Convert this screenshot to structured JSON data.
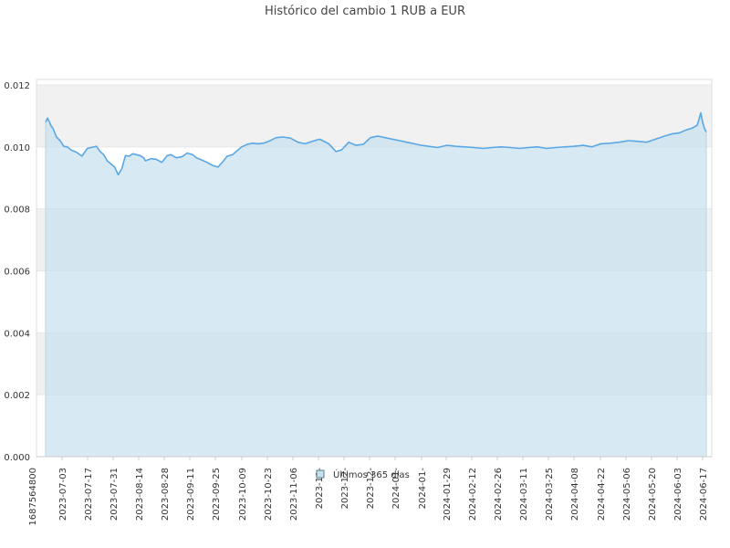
{
  "chart_data": {
    "type": "area",
    "title": "Histórico del cambio 1 RUB a EUR",
    "xlabel": "",
    "ylabel": "",
    "ylim": [
      0,
      0.012
    ],
    "y_ticks": [
      "0.000",
      "0.002",
      "0.004",
      "0.006",
      "0.008",
      "0.010",
      "0.012"
    ],
    "x_tick_labels": [
      "1687564800",
      "2023-07-03",
      "2023-07-17",
      "2023-07-31",
      "2023-08-14",
      "2023-08-28",
      "2023-09-11",
      "2023-09-25",
      "2023-10-09",
      "2023-10-23",
      "2023-11-06",
      "2023-11-",
      "2023-12-",
      "2023-12-",
      "2024-01-",
      "2024-01-",
      "2024-01-29",
      "2024-02-12",
      "2024-02-26",
      "2024-03-11",
      "2024-03-25",
      "2024-04-08",
      "2024-04-22",
      "2024-05-06",
      "2024-05-20",
      "2024-06-03",
      "2024-06-17"
    ],
    "grid": true,
    "legend_position": "bottom-center",
    "colors": {
      "line": "#5aa7e6",
      "fill": "#c6e0ec",
      "band_alt": "#f1f1f1"
    },
    "series": [
      {
        "name": "Últimos 365 días",
        "x": [
          "2023-06-24",
          "2023-06-25",
          "2023-06-26",
          "2023-06-27",
          "2023-06-28",
          "2023-06-30",
          "2023-07-02",
          "2023-07-04",
          "2023-07-06",
          "2023-07-08",
          "2023-07-11",
          "2023-07-14",
          "2023-07-17",
          "2023-07-19",
          "2023-07-22",
          "2023-07-24",
          "2023-07-26",
          "2023-07-28",
          "2023-07-30",
          "2023-08-01",
          "2023-08-03",
          "2023-08-05",
          "2023-08-07",
          "2023-08-09",
          "2023-08-11",
          "2023-08-13",
          "2023-08-15",
          "2023-08-17",
          "2023-08-18",
          "2023-08-21",
          "2023-08-24",
          "2023-08-27",
          "2023-08-30",
          "2023-09-01",
          "2023-09-04",
          "2023-09-07",
          "2023-09-10",
          "2023-09-13",
          "2023-09-15",
          "2023-09-18",
          "2023-09-21",
          "2023-09-24",
          "2023-09-27",
          "2023-09-30",
          "2023-10-02",
          "2023-10-05",
          "2023-10-08",
          "2023-10-10",
          "2023-10-13",
          "2023-10-16",
          "2023-10-19",
          "2023-10-22",
          "2023-10-25",
          "2023-10-29",
          "2023-11-02",
          "2023-11-06",
          "2023-11-10",
          "2023-11-14",
          "2023-11-18",
          "2023-11-22",
          "2023-11-27",
          "2023-12-01",
          "2023-12-04",
          "2023-12-08",
          "2023-12-12",
          "2023-12-16",
          "2023-12-20",
          "2023-12-24",
          "2023-12-28",
          "2024-01-01",
          "2024-01-05",
          "2024-01-09",
          "2024-01-13",
          "2024-01-17",
          "2024-01-21",
          "2024-01-26",
          "2024-01-31",
          "2024-02-05",
          "2024-02-10",
          "2024-02-15",
          "2024-02-20",
          "2024-02-25",
          "2024-03-01",
          "2024-03-06",
          "2024-03-11",
          "2024-03-16",
          "2024-03-21",
          "2024-03-26",
          "2024-03-31",
          "2024-04-05",
          "2024-04-10",
          "2024-04-15",
          "2024-04-20",
          "2024-04-25",
          "2024-04-30",
          "2024-05-05",
          "2024-05-10",
          "2024-05-15",
          "2024-05-20",
          "2024-05-25",
          "2024-05-30",
          "2024-06-03",
          "2024-06-07",
          "2024-06-11",
          "2024-06-14",
          "2024-06-17",
          "2024-06-19",
          "2024-06-20",
          "2024-06-21",
          "2024-06-22"
        ],
        "y": [
          0.0108,
          0.01093,
          0.01082,
          0.01068,
          0.0106,
          0.01032,
          0.0102,
          0.01002,
          0.01,
          0.0099,
          0.00983,
          0.0097,
          0.00995,
          0.00998,
          0.01002,
          0.00985,
          0.00975,
          0.00955,
          0.00945,
          0.00935,
          0.0091,
          0.0093,
          0.00972,
          0.0097,
          0.00978,
          0.00975,
          0.00972,
          0.00965,
          0.00955,
          0.00962,
          0.0096,
          0.0095,
          0.00972,
          0.00975,
          0.00965,
          0.00968,
          0.0098,
          0.00975,
          0.00965,
          0.00958,
          0.0095,
          0.0094,
          0.00935,
          0.00955,
          0.0097,
          0.00975,
          0.0099,
          0.01,
          0.01008,
          0.01012,
          0.0101,
          0.01012,
          0.01018,
          0.0103,
          0.01032,
          0.01028,
          0.01015,
          0.0101,
          0.01018,
          0.01025,
          0.0101,
          0.00985,
          0.0099,
          0.01015,
          0.01005,
          0.01008,
          0.0103,
          0.01035,
          0.0103,
          0.01025,
          0.0102,
          0.01015,
          0.0101,
          0.01005,
          0.01002,
          0.00998,
          0.01005,
          0.01002,
          0.01,
          0.00998,
          0.00995,
          0.00998,
          0.01,
          0.00998,
          0.00995,
          0.00998,
          0.01,
          0.00995,
          0.00998,
          0.01,
          0.01002,
          0.01005,
          0.01,
          0.0101,
          0.01012,
          0.01015,
          0.0102,
          0.01018,
          0.01015,
          0.01025,
          0.01035,
          0.01042,
          0.01045,
          0.01055,
          0.0106,
          0.0107,
          0.0111,
          0.0108,
          0.0106,
          0.01048
        ]
      }
    ]
  }
}
